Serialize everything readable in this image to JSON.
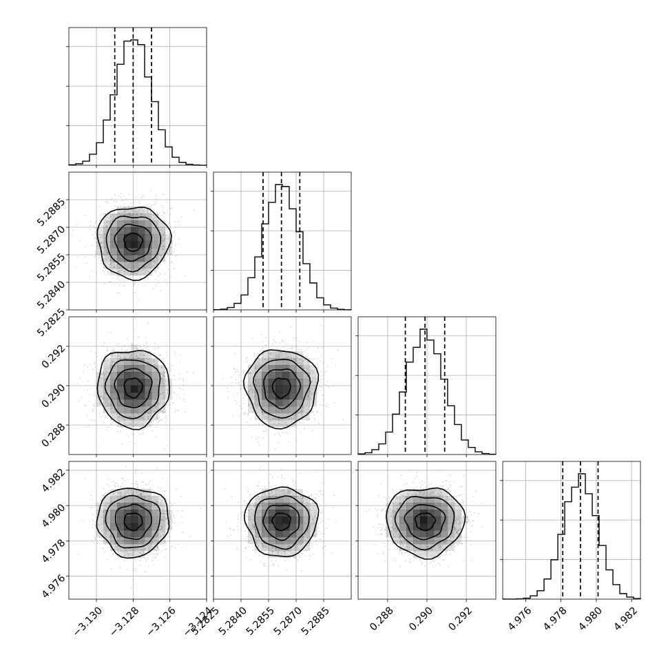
{
  "chart_data": {
    "type": "corner",
    "grid": true,
    "parameters": [
      {
        "mean": -3.128,
        "std": 0.00098,
        "range": [
          -3.1315,
          -3.124
        ],
        "ticks": [
          -3.13,
          -3.128,
          -3.126,
          -3.124
        ],
        "tick_labels": [
          "−3.130",
          "−3.128",
          "−3.126",
          "−3.124"
        ],
        "quantiles": [
          -3.129,
          -3.128,
          -3.127
        ]
      },
      {
        "mean": 5.2862,
        "std": 0.00098,
        "range": [
          5.2825,
          5.29
        ],
        "ticks": [
          5.2825,
          5.284,
          5.2855,
          5.287,
          5.2885
        ],
        "tick_labels": [
          "5.2825",
          "5.2840",
          "5.2855",
          "5.2870",
          "5.2885"
        ],
        "quantiles": [
          5.2852,
          5.2862,
          5.2872
        ]
      },
      {
        "mean": 0.2899,
        "std": 0.00099,
        "range": [
          0.2865,
          0.2935
        ],
        "ticks": [
          0.288,
          0.29,
          0.292
        ],
        "tick_labels": [
          "0.288",
          "0.290",
          "0.292"
        ],
        "quantiles": [
          0.2889,
          0.2899,
          0.2909
        ]
      },
      {
        "mean": 4.9791,
        "std": 0.00098,
        "range": [
          4.9747,
          4.9825
        ],
        "ticks": [
          4.976,
          4.978,
          4.98,
          4.982
        ],
        "tick_labels": [
          "4.976",
          "4.978",
          "4.980",
          "4.982"
        ],
        "quantiles": [
          4.9781,
          4.9791,
          4.9801
        ]
      }
    ],
    "histogram_bins": 20,
    "contour_levels_sigma": [
      0.5,
      1.0,
      1.5,
      2.0
    ],
    "colors": {
      "line": "#000000",
      "grid": "#b0b0b0",
      "scatter": "#9a9a9a",
      "density": "#000000",
      "background": "#ffffff"
    }
  }
}
